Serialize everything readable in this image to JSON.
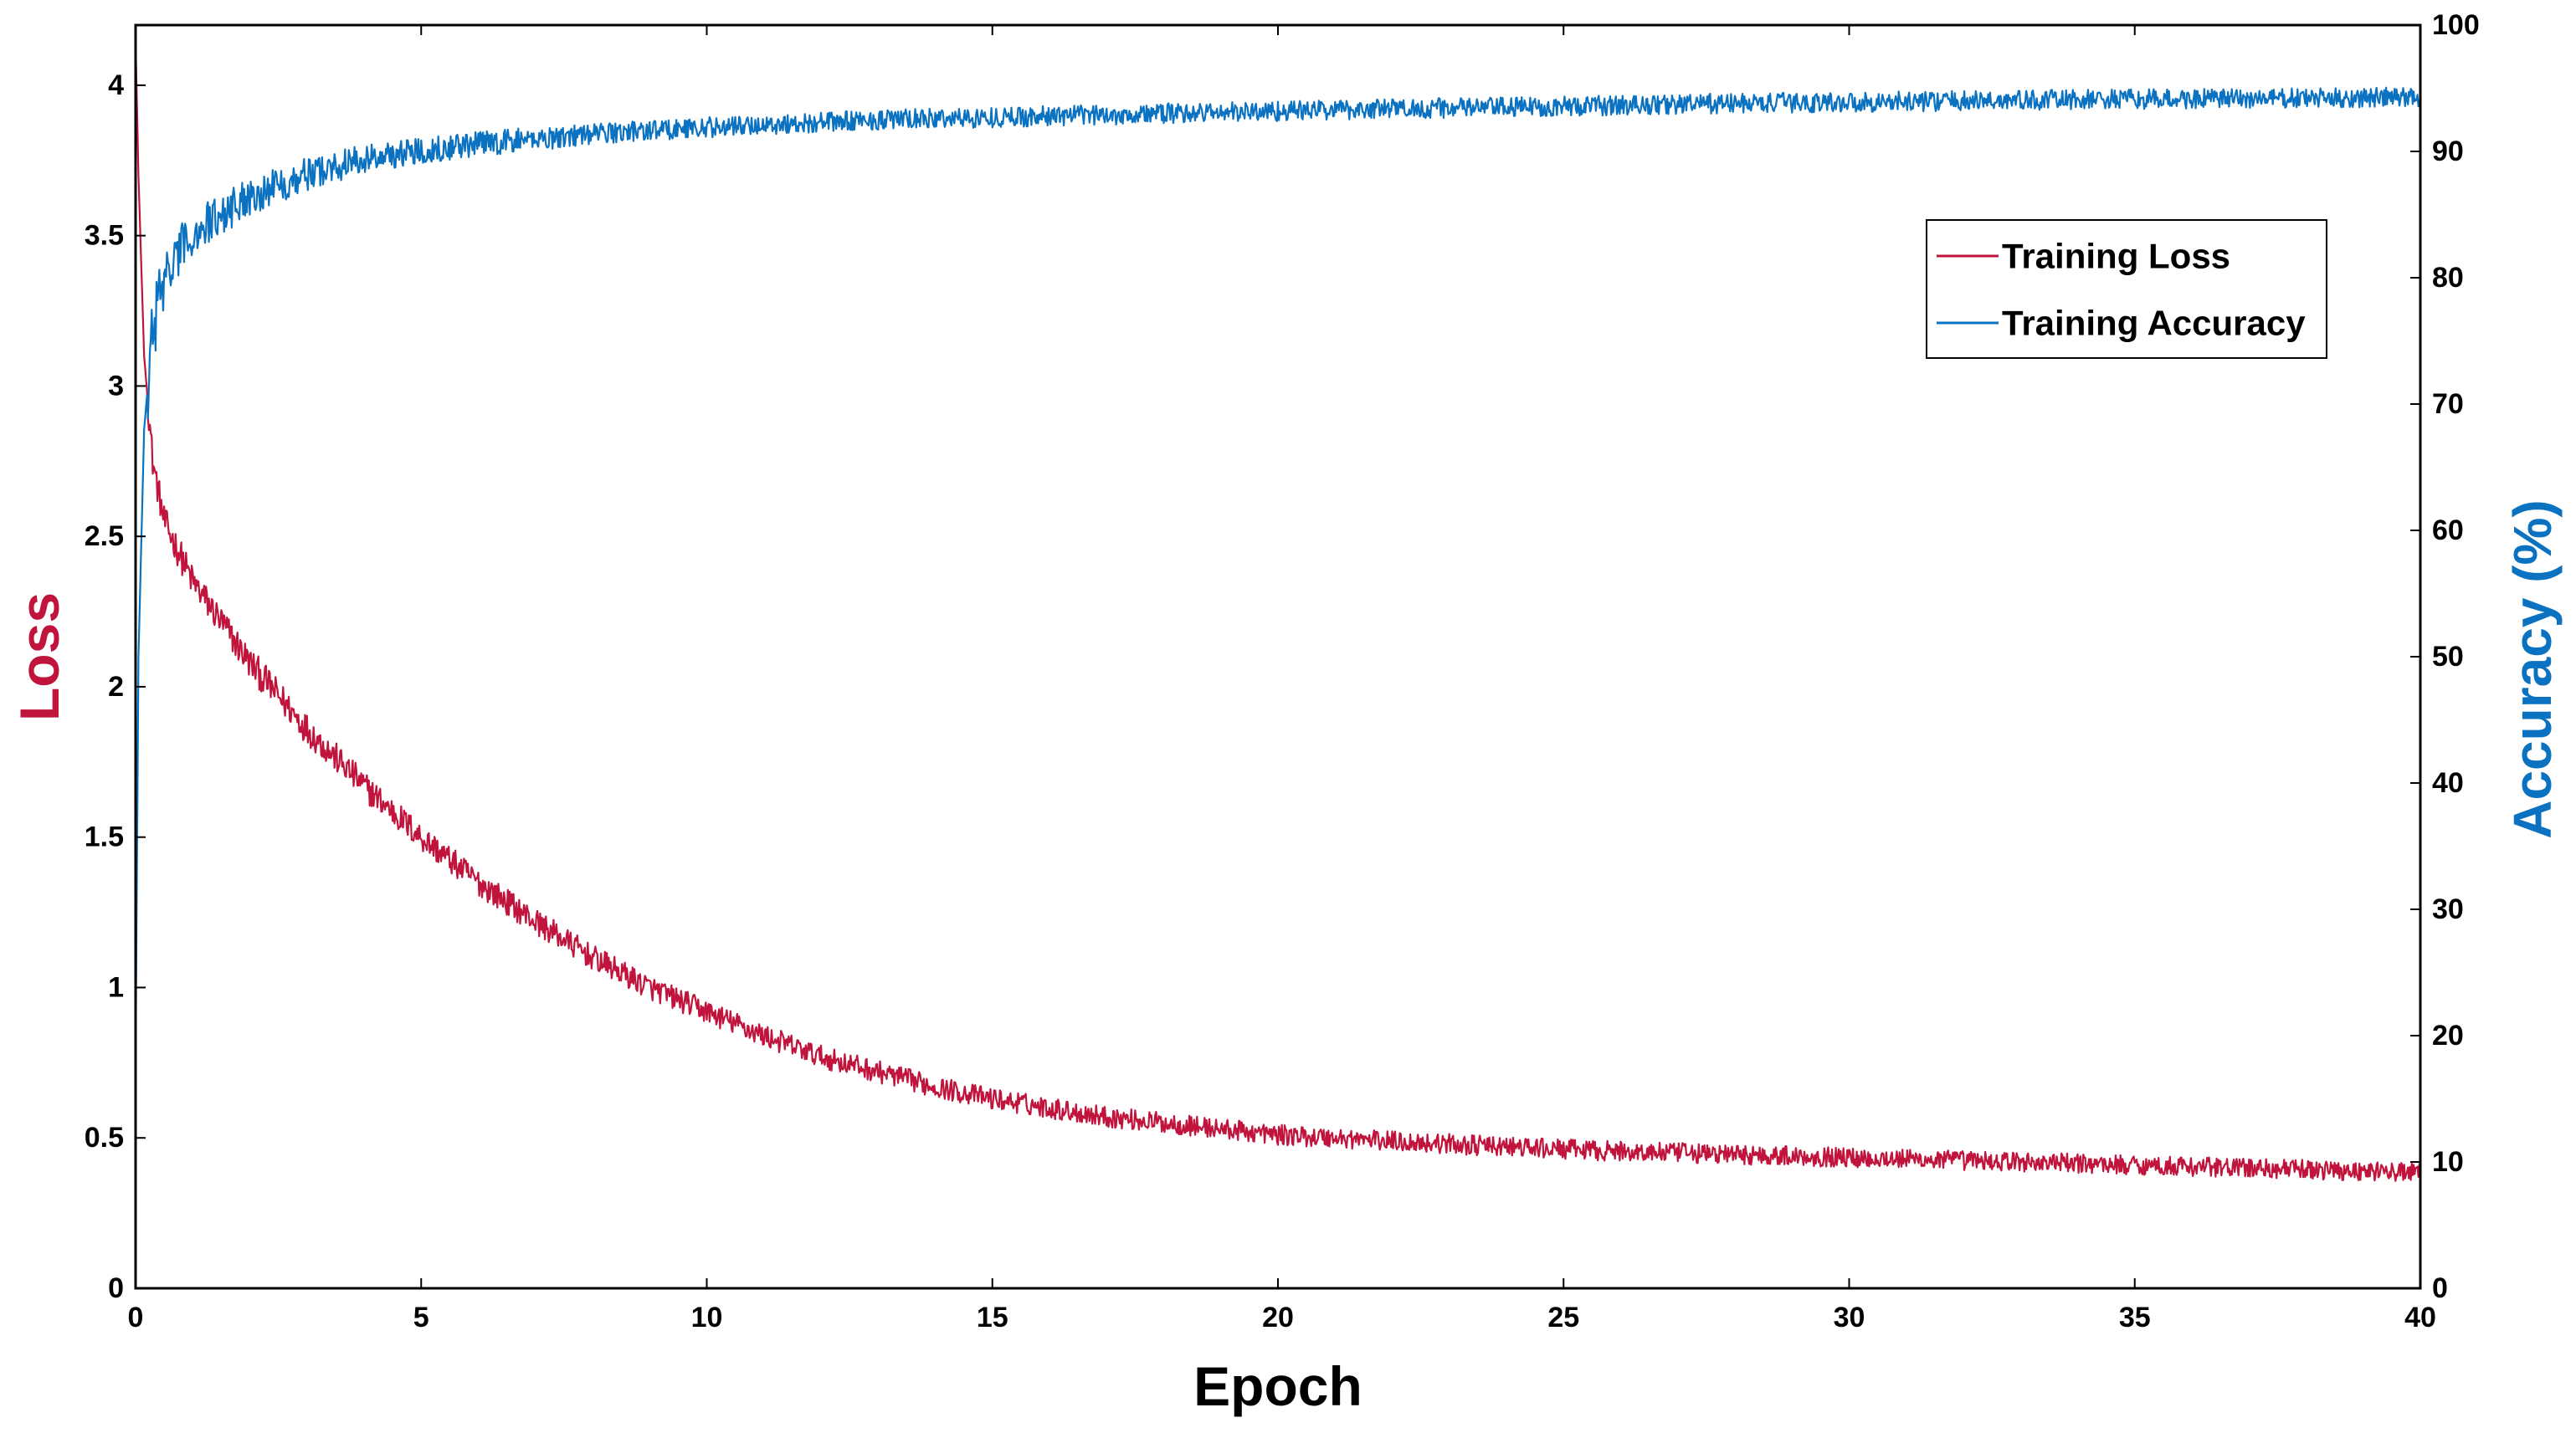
{
  "chart_data": {
    "type": "line",
    "title": "",
    "xlabel": "Epoch",
    "ylabel_left": "Loss",
    "ylabel_right": "Accuracy (%)",
    "xlim": [
      0,
      40
    ],
    "ylim_left": [
      0,
      4.2
    ],
    "ylim_right": [
      0,
      100
    ],
    "x_ticks": [
      "0",
      "5",
      "10",
      "15",
      "20",
      "25",
      "30",
      "35",
      "40"
    ],
    "y_left_ticks": [
      "0",
      "0.5",
      "1",
      "1.5",
      "2",
      "2.5",
      "3",
      "3.5",
      "4"
    ],
    "y_right_ticks": [
      "0",
      "10",
      "20",
      "30",
      "40",
      "50",
      "60",
      "70",
      "80",
      "90",
      "100"
    ],
    "grid": false,
    "legend_position": "top-right",
    "colors": {
      "loss": "#c0143c",
      "accuracy": "#0a72c0",
      "left_axis_title": "#c0143c",
      "right_axis_title": "#0a72c0"
    },
    "series": [
      {
        "name": "Training Loss",
        "axis": "left",
        "noise": 0.045,
        "x": [
          0,
          0.05,
          0.15,
          0.3,
          0.5,
          1,
          2,
          3,
          4,
          5,
          6,
          7,
          8,
          9,
          10,
          11,
          12,
          13,
          14,
          15,
          16,
          17,
          18,
          19,
          20,
          22,
          24,
          26,
          28,
          30,
          32,
          34,
          36,
          38,
          40
        ],
        "y": [
          4.15,
          3.7,
          3.1,
          2.75,
          2.55,
          2.35,
          2.08,
          1.86,
          1.67,
          1.5,
          1.35,
          1.22,
          1.1,
          1.0,
          0.92,
          0.84,
          0.77,
          0.72,
          0.67,
          0.63,
          0.6,
          0.57,
          0.55,
          0.53,
          0.51,
          0.49,
          0.47,
          0.455,
          0.445,
          0.435,
          0.425,
          0.415,
          0.405,
          0.395,
          0.385
        ]
      },
      {
        "name": "Training Accuracy",
        "axis": "right",
        "noise": 0.8,
        "x": [
          0,
          0.05,
          0.15,
          0.3,
          0.5,
          1,
          2,
          3,
          4,
          5,
          6,
          7,
          8,
          9,
          10,
          11,
          12,
          13,
          14,
          15,
          16,
          17,
          18,
          19,
          20,
          22,
          24,
          26,
          28,
          30,
          32,
          34,
          36,
          38,
          40
        ],
        "y": [
          18,
          50,
          68,
          76,
          80,
          83.5,
          86.5,
          88.2,
          89.4,
          90.1,
          90.6,
          91.0,
          91.4,
          91.7,
          91.9,
          92.1,
          92.3,
          92.5,
          92.6,
          92.7,
          92.8,
          92.9,
          93.0,
          93.1,
          93.2,
          93.4,
          93.5,
          93.65,
          93.8,
          93.9,
          94.0,
          94.1,
          94.15,
          94.2,
          94.3
        ]
      }
    ]
  }
}
